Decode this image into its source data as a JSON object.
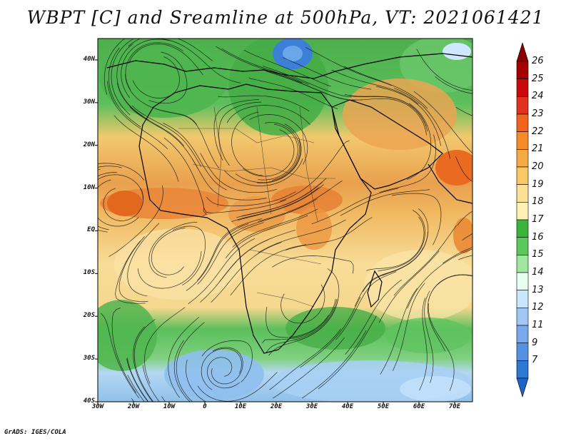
{
  "title": "WBPT [C] and Sreamline at 500hPa, VT: 2021061421",
  "footer": "GrADS: IGES/COLA",
  "map": {
    "lat_labels": [
      "40N",
      "30N",
      "20N",
      "10N",
      "EQ",
      "10S",
      "20S",
      "30S",
      "40S"
    ],
    "lon_labels": [
      "30W",
      "20W",
      "10W",
      "0",
      "10E",
      "20E",
      "30E",
      "40E",
      "50E",
      "60E",
      "70E"
    ],
    "lat_range": [
      -40,
      45
    ],
    "lon_range": [
      -30,
      75
    ]
  },
  "colorbar": {
    "labels": [
      "26",
      "25",
      "24",
      "23",
      "22",
      "21",
      "20",
      "19",
      "18",
      "17",
      "16",
      "15",
      "14",
      "13",
      "12",
      "11",
      "9",
      "7"
    ],
    "colors": [
      "#a50000",
      "#c80a0a",
      "#e0321e",
      "#f0641e",
      "#f58c28",
      "#f5aa46",
      "#fac864",
      "#fae196",
      "#fff0b4",
      "#3cb43c",
      "#5ac85a",
      "#a0e6a0",
      "#e6fff0",
      "#c8e6ff",
      "#a0c8f5",
      "#78aaeb",
      "#5591e1",
      "#2d78d2"
    ]
  }
}
